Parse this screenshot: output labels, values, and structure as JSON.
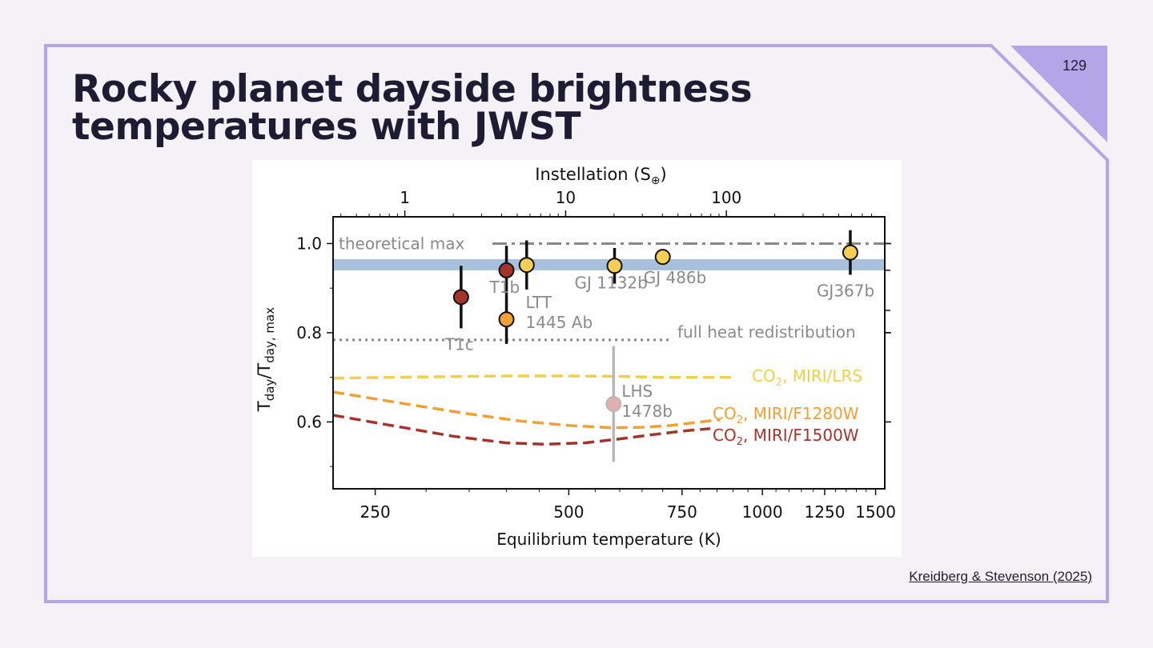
{
  "slide": {
    "title": "Rocky planet dayside brightness temperatures with JWST",
    "number": "129",
    "citation": "Kreidberg & Stevenson (2025)",
    "colors": {
      "accent": "#b3a5e8",
      "background": "#f4f2f7",
      "title": "#1e1c33"
    }
  },
  "chart_data": {
    "type": "scatter",
    "xlabel": "Equilibrium temperature (K)",
    "x_scale": "log",
    "xlim": [
      215,
      1550
    ],
    "x_ticks": [
      250,
      500,
      750,
      1000,
      1250,
      1500
    ],
    "top_axis": {
      "label": "Instellation (S",
      "label_symbol": "⊕",
      "label_close": ")",
      "scale": "log",
      "ticks": [
        1,
        10,
        100
      ]
    },
    "ylabel": "T_day/T_day,max",
    "ylim": [
      0.45,
      1.06
    ],
    "y_ticks": [
      0.6,
      0.8,
      1.0
    ],
    "points": [
      {
        "name": "T1c",
        "label": "T1c",
        "teq": 340,
        "y": 0.88,
        "yerr": 0.07,
        "color": "#a3342c"
      },
      {
        "name": "T1b",
        "label": "T1b",
        "teq": 400,
        "y": 0.94,
        "yerr": 0.055,
        "color": "#a3342c"
      },
      {
        "name": "LTT 1445 Ab",
        "label": [
          "LTT",
          "1445 Ab"
        ],
        "teq": 400,
        "y": 0.83,
        "yerr": 0.055,
        "color": "#f0a035"
      },
      {
        "name": "LTT 1445 Ab (2)",
        "label": "",
        "teq": 430,
        "y": 0.952,
        "yerr": 0.055,
        "color": "#f5cf55"
      },
      {
        "name": "GJ 1132b",
        "label": "GJ 1132b",
        "teq": 589,
        "y": 0.95,
        "yerr": 0.04,
        "color": "#f5cf55"
      },
      {
        "name": "GJ 486b",
        "label": "GJ 486b",
        "teq": 700,
        "y": 0.97,
        "yerr": 0,
        "color": "#f5cf55"
      },
      {
        "name": "GJ367b",
        "label": "GJ367b",
        "teq": 1370,
        "y": 0.98,
        "yerr": 0.05,
        "color": "#f5cf55"
      },
      {
        "name": "LHS 1478b",
        "label": [
          "LHS",
          "1478b"
        ],
        "teq": 587,
        "y": 0.64,
        "yerr": 0.13,
        "color": "#e0b0b0",
        "faded": true
      }
    ],
    "theoretical_max": {
      "label": "theoretical max",
      "y": 1.0
    },
    "full_heat_redistribution": {
      "label": "full heat redistribution",
      "y": 0.784
    },
    "band": {
      "y": [
        0.94,
        0.965
      ],
      "color": "#a8c0dc"
    },
    "model_curves": [
      {
        "name": "CO2, MIRI/LRS",
        "label": "CO",
        "sub": "2",
        "suffix": ", MIRI/LRS",
        "color": "#f2cf4a",
        "x": [
          215,
          300,
          400,
          500,
          600,
          700,
          800,
          900
        ],
        "y": [
          0.698,
          0.701,
          0.703,
          0.703,
          0.702,
          0.7,
          0.7,
          0.7
        ]
      },
      {
        "name": "CO2, MIRI/F1280W",
        "label": "CO",
        "sub": "2",
        "suffix": ", MIRI/F1280W",
        "color": "#f0a035",
        "x": [
          215,
          280,
          350,
          420,
          500,
          580,
          650,
          720,
          800,
          860
        ],
        "y": [
          0.667,
          0.64,
          0.618,
          0.602,
          0.592,
          0.587,
          0.588,
          0.592,
          0.6,
          0.605
        ]
      },
      {
        "name": "CO2, MIRI/F1500W",
        "label": "CO",
        "sub": "2",
        "suffix": ", MIRI/F1500W",
        "color": "#a3342c",
        "x": [
          215,
          270,
          330,
          400,
          460,
          530,
          600,
          680,
          760,
          830
        ],
        "y": [
          0.615,
          0.59,
          0.568,
          0.553,
          0.55,
          0.553,
          0.562,
          0.572,
          0.58,
          0.585
        ]
      }
    ]
  }
}
